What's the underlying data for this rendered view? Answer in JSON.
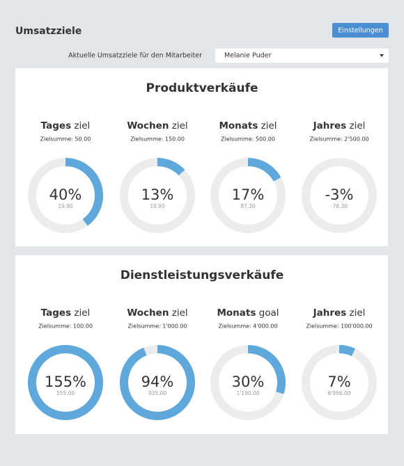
{
  "header": {
    "title": "Umsatzziele",
    "button": "Einstellungen"
  },
  "filter": {
    "label": "Aktuelle Umsatzziele für den Mitarbeiter",
    "selected": "Melanie Puder"
  },
  "sections": [
    {
      "title": "Produktverkäufe",
      "goals": [
        {
          "name": "Tages",
          "suffix": "ziel",
          "target": "Zielsumme: 50.00",
          "value": 40,
          "value_label": "40%",
          "amount": "19.90"
        },
        {
          "name": "Wochen",
          "suffix": "ziel",
          "target": "Zielsumme: 150.00",
          "value": 13,
          "value_label": "13%",
          "amount": "19.90"
        },
        {
          "name": "Monats",
          "suffix": "ziel",
          "target": "Zielsumme: 500.00",
          "value": 17,
          "value_label": "17%",
          "amount": "87.30"
        },
        {
          "name": "Jahres",
          "suffix": "ziel",
          "target": "Zielsumme: 2'500.00",
          "value": -3,
          "value_label": "-3%",
          "amount": "-76.30"
        }
      ]
    },
    {
      "title": "Dienstleistungsverkäufe",
      "goals": [
        {
          "name": "Tages",
          "suffix": "ziel",
          "target": "Zielsumme: 100.00",
          "value": 155,
          "value_label": "155%",
          "amount": "155.00"
        },
        {
          "name": "Wochen",
          "suffix": "ziel",
          "target": "Zielsumme: 1'000.00",
          "value": 94,
          "value_label": "94%",
          "amount": "935.00"
        },
        {
          "name": "Monats",
          "suffix": "goal",
          "target": "Zielsumme: 4'000.00",
          "value": 30,
          "value_label": "30%",
          "amount": "1'190.00"
        },
        {
          "name": "Jahres",
          "suffix": "ziel",
          "target": "Zielsumme: 100'000.00",
          "value": 7,
          "value_label": "7%",
          "amount": "6'956.00"
        }
      ]
    }
  ]
}
